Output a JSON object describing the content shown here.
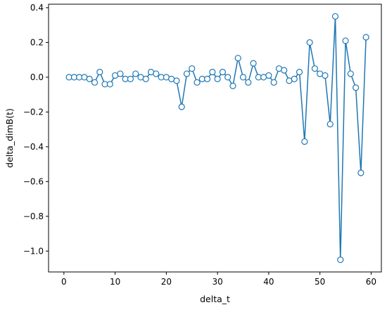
{
  "chart_data": {
    "type": "line",
    "xlabel": "delta_t",
    "ylabel": "delta_dimB(t)",
    "xlim": [
      -3,
      62
    ],
    "ylim": [
      -1.12,
      0.42
    ],
    "xticks": [
      0,
      10,
      20,
      30,
      40,
      50,
      60
    ],
    "yticks": [
      -1.0,
      -0.8,
      -0.6,
      -0.4,
      -0.2,
      0.0,
      0.2,
      0.4
    ],
    "grid": false,
    "series": [
      {
        "color": "#1f77b4",
        "marker": "circle-open",
        "x": [
          1,
          2,
          3,
          4,
          5,
          6,
          7,
          8,
          9,
          10,
          11,
          12,
          13,
          14,
          15,
          16,
          17,
          18,
          19,
          20,
          21,
          22,
          23,
          24,
          25,
          26,
          27,
          28,
          29,
          30,
          31,
          32,
          33,
          34,
          35,
          36,
          37,
          38,
          39,
          40,
          41,
          42,
          43,
          44,
          45,
          46,
          47,
          48,
          49,
          50,
          51,
          52,
          53,
          54,
          55,
          56,
          57,
          58,
          59
        ],
        "y": [
          0.0,
          0.0,
          0.0,
          0.0,
          -0.01,
          -0.03,
          0.03,
          -0.04,
          -0.04,
          0.01,
          0.02,
          -0.01,
          -0.01,
          0.02,
          0.0,
          -0.01,
          0.03,
          0.02,
          0.0,
          0.0,
          -0.01,
          -0.02,
          -0.17,
          0.02,
          0.05,
          -0.03,
          -0.01,
          -0.01,
          0.03,
          -0.01,
          0.03,
          0.0,
          -0.05,
          0.11,
          0.0,
          -0.03,
          0.08,
          0.0,
          0.0,
          0.01,
          -0.03,
          0.05,
          0.04,
          -0.02,
          -0.01,
          0.03,
          -0.37,
          0.2,
          0.05,
          0.02,
          0.01,
          -0.27,
          0.35,
          -1.05,
          0.21,
          0.02,
          -0.06,
          -0.55,
          0.23
        ]
      }
    ]
  }
}
